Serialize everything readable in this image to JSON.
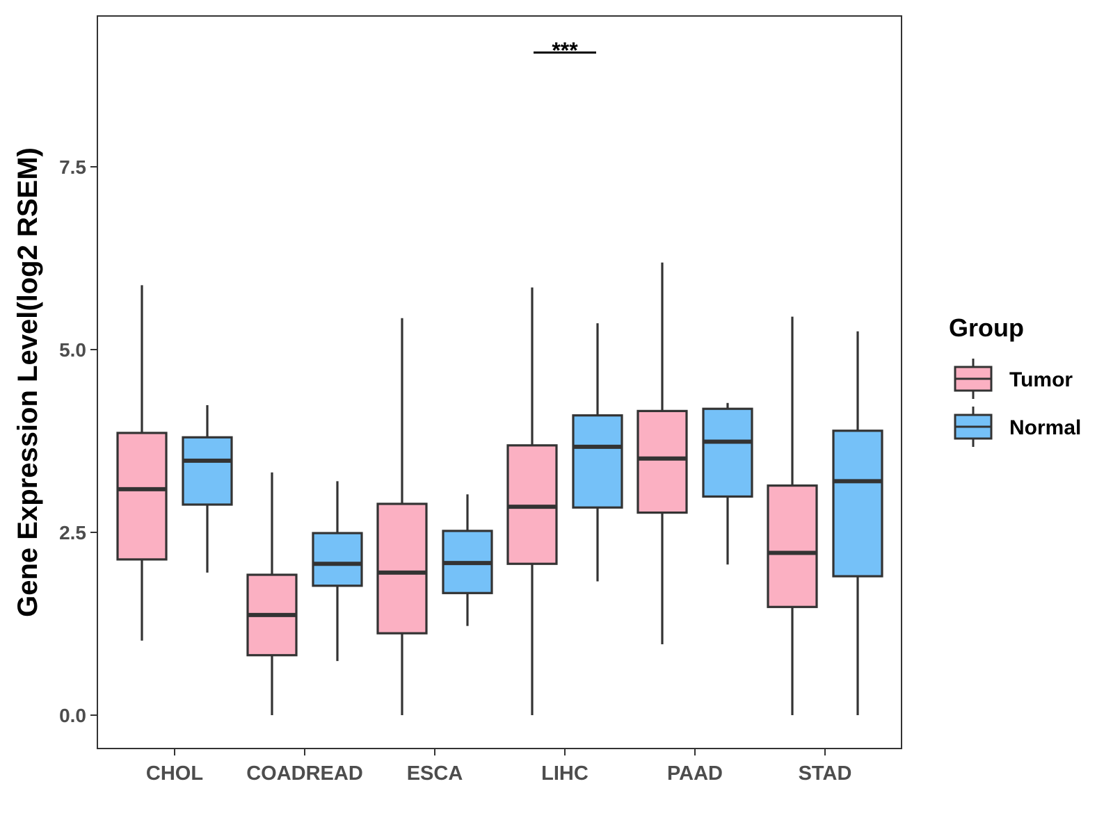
{
  "chart_data": {
    "type": "boxplot",
    "ylabel": "Gene Expression Level(log2 RSEM)",
    "xlabel": "",
    "ylim": [
      -0.45,
      9.6
    ],
    "yticks": [
      0.0,
      2.5,
      5.0,
      7.5
    ],
    "ytick_labels": [
      "0.0",
      "2.5",
      "5.0",
      "7.5"
    ],
    "categories": [
      "CHOL",
      "COADREAD",
      "ESCA",
      "LIHC",
      "PAAD",
      "STAD"
    ],
    "grid": false,
    "legend": {
      "title": "Group",
      "position": "right",
      "entries": [
        {
          "name": "Tumor",
          "color": "#fbb0c2"
        },
        {
          "name": "Normal",
          "color": "#75c1f8"
        }
      ]
    },
    "series": [
      {
        "name": "Tumor",
        "color": "#fbb0c2",
        "boxes": [
          {
            "min": 1.02,
            "q1": 2.13,
            "median": 3.09,
            "q3": 3.86,
            "max": 5.88
          },
          {
            "min": 0.0,
            "q1": 0.82,
            "median": 1.37,
            "q3": 1.92,
            "max": 3.32
          },
          {
            "min": 0.0,
            "q1": 1.12,
            "median": 1.95,
            "q3": 2.89,
            "max": 5.43
          },
          {
            "min": 0.0,
            "q1": 2.07,
            "median": 2.85,
            "q3": 3.69,
            "max": 5.85
          },
          {
            "min": 0.97,
            "q1": 2.77,
            "median": 3.51,
            "q3": 4.16,
            "max": 6.19
          },
          {
            "min": 0.0,
            "q1": 1.48,
            "median": 2.22,
            "q3": 3.14,
            "max": 5.45
          }
        ]
      },
      {
        "name": "Normal",
        "color": "#75c1f8",
        "boxes": [
          {
            "min": 1.95,
            "q1": 2.88,
            "median": 3.48,
            "q3": 3.8,
            "max": 4.24
          },
          {
            "min": 0.74,
            "q1": 1.77,
            "median": 2.07,
            "q3": 2.49,
            "max": 3.2
          },
          {
            "min": 1.22,
            "q1": 1.67,
            "median": 2.08,
            "q3": 2.52,
            "max": 3.02
          },
          {
            "min": 1.83,
            "q1": 2.84,
            "median": 3.67,
            "q3": 4.1,
            "max": 5.36
          },
          {
            "min": 2.06,
            "q1": 2.99,
            "median": 3.74,
            "q3": 4.19,
            "max": 4.27
          },
          {
            "min": 0.0,
            "q1": 1.9,
            "median": 3.2,
            "q3": 3.89,
            "max": 5.25
          }
        ]
      }
    ],
    "annotations": [
      {
        "category": "LIHC",
        "text": "***",
        "y": 9.1
      }
    ]
  }
}
